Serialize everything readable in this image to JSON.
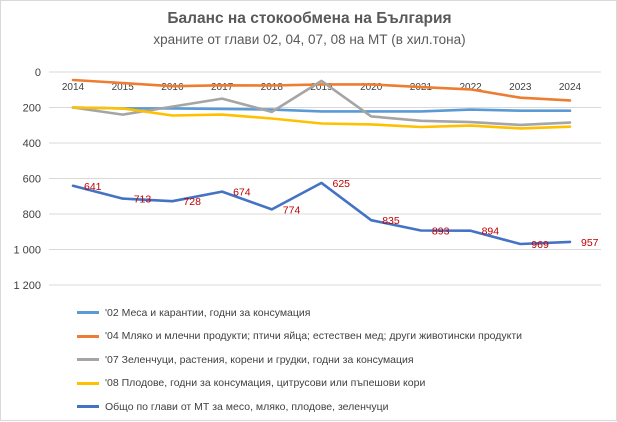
{
  "chart_data": {
    "type": "line",
    "title": "Баланс на стокообмена на България",
    "subtitle": "храните от глави 02, 04, 07, 08 на МТ (в хил.тона)",
    "categories": [
      "2014",
      "2015",
      "2016",
      "2017",
      "2018",
      "2019",
      "2020",
      "2021",
      "2022",
      "2023",
      "2024"
    ],
    "y_axis": {
      "reversed": true,
      "min": 0,
      "max": 1200,
      "step": 200,
      "tick_labels": [
        "0",
        "200",
        "400",
        "600",
        "800",
        "1 000",
        "1 200"
      ]
    },
    "x_axis_position": "top-at-zero",
    "grid": true,
    "legend_position": "bottom",
    "series": [
      {
        "name": "'02 Меса и карантии, годни за консумация",
        "color": "#5b9bd5",
        "values": [
          200,
          205,
          205,
          208,
          212,
          222,
          222,
          222,
          212,
          218,
          218
        ],
        "labels": false
      },
      {
        "name": "'04 Мляко и млечни продукти; птичи яйца; естествен мед; други животински продукти",
        "color": "#ed7d31",
        "values": [
          45,
          62,
          80,
          75,
          76,
          70,
          70,
          85,
          98,
          145,
          160
        ],
        "labels": false
      },
      {
        "name": "'07 Зеленчуци, растения, корени и грудки, годни за консумация",
        "color": "#a5a5a5",
        "values": [
          200,
          240,
          195,
          150,
          225,
          50,
          250,
          275,
          282,
          298,
          285
        ],
        "labels": false
      },
      {
        "name": "'08 Плодове, годни за консумация, цитрусови или пъпешови кори",
        "color": "#ffc000",
        "values": [
          200,
          205,
          245,
          240,
          262,
          290,
          295,
          310,
          302,
          318,
          308
        ],
        "labels": false
      },
      {
        "name": "Общо по глави от МТ за месо, мляко, плодове, зеленчуци",
        "color": "#4472c4",
        "values": [
          641,
          713,
          728,
          674,
          774,
          625,
          835,
          893,
          894,
          969,
          957
        ],
        "labels": true
      }
    ]
  }
}
